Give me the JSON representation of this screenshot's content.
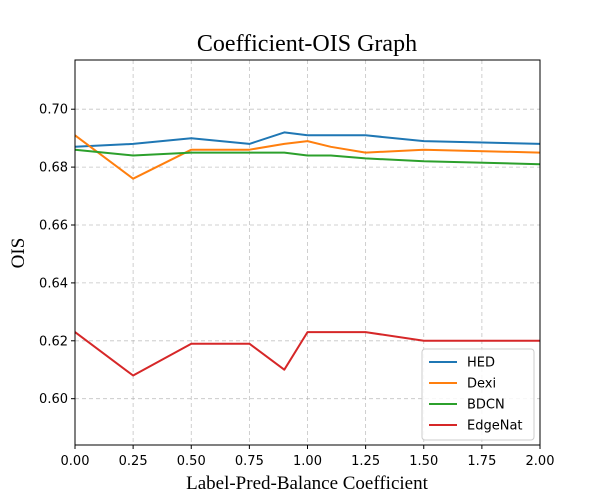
{
  "chart_data": {
    "type": "line",
    "title": "Coefficient-OIS Graph",
    "xlabel": "Label-Pred-Balance Coefficient",
    "ylabel": "OIS",
    "xlim": [
      0.0,
      2.0
    ],
    "ylim": [
      0.584,
      0.717
    ],
    "xticks": [
      "0.00",
      "0.25",
      "0.50",
      "0.75",
      "1.00",
      "1.25",
      "1.50",
      "1.75",
      "2.00"
    ],
    "xtick_values": [
      0.0,
      0.25,
      0.5,
      0.75,
      1.0,
      1.25,
      1.5,
      1.75,
      2.0
    ],
    "yticks": [
      "0.60",
      "0.62",
      "0.64",
      "0.66",
      "0.68",
      "0.70"
    ],
    "ytick_values": [
      0.6,
      0.62,
      0.64,
      0.66,
      0.68,
      0.7
    ],
    "grid": true,
    "legend_position": "lower-right",
    "x": [
      0.0,
      0.25,
      0.5,
      0.75,
      0.9,
      1.0,
      1.1,
      1.25,
      1.5,
      2.0
    ],
    "series": [
      {
        "name": "HED",
        "color": "#1f77b4",
        "values": [
          0.687,
          0.688,
          0.69,
          0.688,
          0.692,
          0.691,
          0.691,
          0.691,
          0.689,
          0.688
        ]
      },
      {
        "name": "Dexi",
        "color": "#ff7f0e",
        "values": [
          0.691,
          0.676,
          0.686,
          0.686,
          0.688,
          0.689,
          0.687,
          0.685,
          0.686,
          0.685
        ]
      },
      {
        "name": "BDCN",
        "color": "#2ca02c",
        "values": [
          0.686,
          0.684,
          0.685,
          0.685,
          0.685,
          0.684,
          0.684,
          0.683,
          0.682,
          0.681
        ]
      },
      {
        "name": "EdgeNat",
        "color": "#d62728",
        "values": [
          0.623,
          0.608,
          0.619,
          0.619,
          0.61,
          0.623,
          0.623,
          0.623,
          0.62,
          0.62
        ]
      }
    ]
  }
}
